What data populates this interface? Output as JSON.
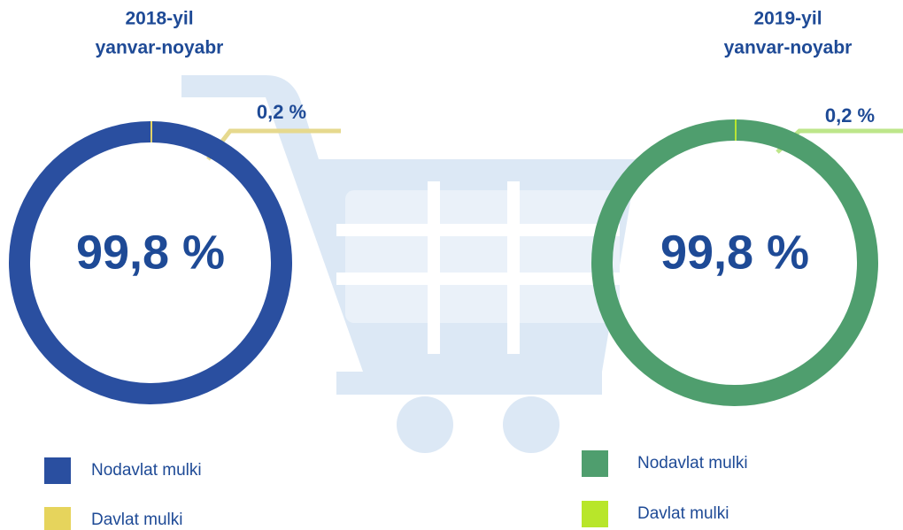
{
  "chart_data": [
    {
      "type": "donut",
      "title": "2018-yil",
      "subtitle": "yanvar-noyabr",
      "categories": [
        "Nodavlat mulki",
        "Davlat mulki"
      ],
      "values": [
        99.8,
        0.2
      ],
      "value_labels": [
        "99,8 %",
        "0,2 %"
      ],
      "colors": [
        "#2a4fa0",
        "#e6d45c"
      ]
    },
    {
      "type": "donut",
      "title": "2019-yil",
      "subtitle": "yanvar-noyabr",
      "categories": [
        "Nodavlat mulki",
        "Davlat mulki"
      ],
      "values": [
        99.8,
        0.2
      ],
      "value_labels": [
        "99,8 %",
        "0,2 %"
      ],
      "colors": [
        "#4f9e6e",
        "#b8e62a"
      ]
    }
  ]
}
